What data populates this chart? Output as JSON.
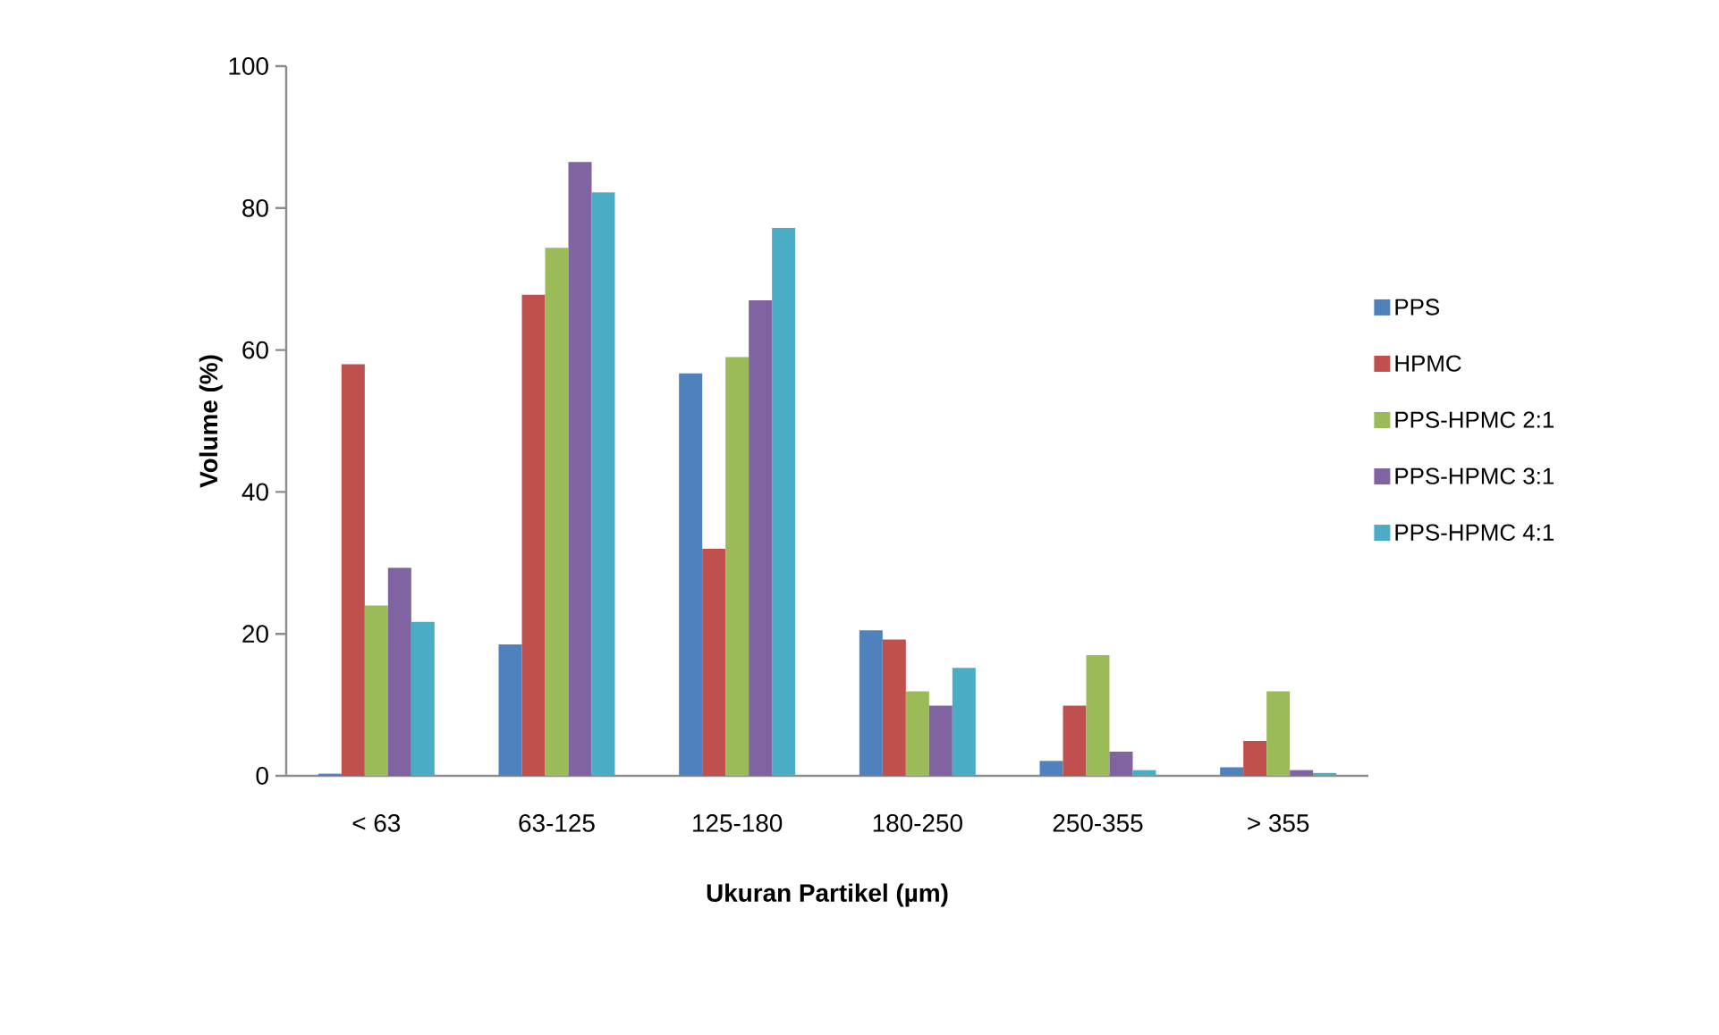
{
  "chart_data": {
    "type": "bar",
    "xlabel": "Ukuran Partikel (µm)",
    "ylabel": "Volume (%)",
    "categories": [
      "< 63",
      "63-125",
      "125-180",
      "180-250",
      "250-355",
      "> 355"
    ],
    "series": [
      {
        "name": "PPS",
        "color": "#4f81bd",
        "values": [
          0.3,
          18.5,
          56.7,
          20.5,
          2.1,
          1.2
        ]
      },
      {
        "name": "HPMC",
        "color": "#c0504d",
        "values": [
          58,
          67.8,
          32,
          19.2,
          9.9,
          4.9
        ]
      },
      {
        "name": "PPS-HPMC 2:1",
        "color": "#9bbb59",
        "values": [
          24,
          74.4,
          59,
          11.9,
          17,
          11.9
        ]
      },
      {
        "name": "PPS-HPMC 3:1",
        "color": "#8064a2",
        "values": [
          29.3,
          86.5,
          67,
          9.9,
          3.4,
          0.8
        ]
      },
      {
        "name": "PPS-HPMC 4:1",
        "color": "#4bacc6",
        "values": [
          21.7,
          82.2,
          77.2,
          15.2,
          0.8,
          0.4
        ]
      }
    ],
    "ylim": [
      0,
      100
    ],
    "yticks": [
      0,
      20,
      40,
      60,
      80,
      100
    ],
    "grid": false,
    "legend": "right"
  }
}
